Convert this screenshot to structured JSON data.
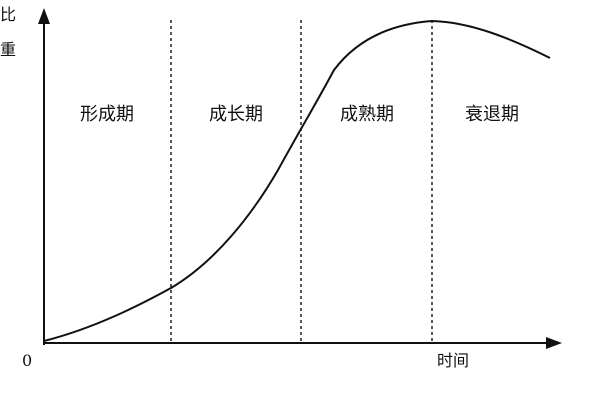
{
  "diagram": {
    "y_axis_label": [
      "比",
      "重"
    ],
    "x_axis_label": "时间",
    "origin_label": "0",
    "phases": [
      {
        "label": "形成期"
      },
      {
        "label": "成长期"
      },
      {
        "label": "成熟期"
      },
      {
        "label": "衰退期"
      }
    ]
  }
}
